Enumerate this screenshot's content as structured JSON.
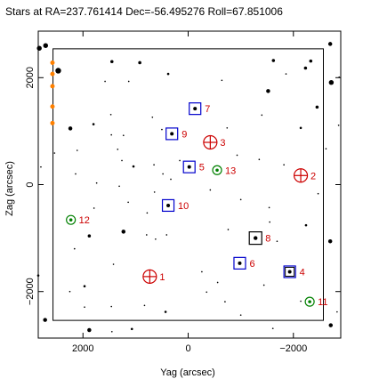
{
  "chart_data": {
    "type": "scatter",
    "title": "Stars at RA=237.761414 Dec=-56.495276 Roll=67.851006",
    "xlabel": "Yag (arcsec)",
    "ylabel": "Zag (arcsec)",
    "xlim": [
      2850,
      -2900
    ],
    "ylim": [
      -2870,
      2870
    ],
    "xticks": [
      2000,
      0,
      -2000
    ],
    "yticks": [
      2000,
      0,
      -2000
    ],
    "xticklabels": [
      "2000",
      "0",
      "−2000"
    ],
    "yticklabels": [
      "2000",
      "0",
      "−2000"
    ],
    "grid": false,
    "colors": {
      "stars": "#000000",
      "guide": "#0000cc",
      "acq": "#000000",
      "mon": "#008000",
      "fid": "#cc0000",
      "bad": "#ff8000"
    },
    "ccd_boundary": {
      "yag": [
        2570,
        -2570
      ],
      "zag": [
        -2540,
        2540
      ]
    },
    "catalog": [
      {
        "id": "1",
        "type": "fid",
        "yag": 730,
        "zag": -1720
      },
      {
        "id": "2",
        "type": "fid",
        "yag": -2140,
        "zag": 170
      },
      {
        "id": "3",
        "type": "fid",
        "yag": -420,
        "zag": 790
      },
      {
        "id": "4",
        "type": "guide",
        "yag": -1930,
        "zag": -1630
      },
      {
        "id": "5",
        "type": "guide",
        "yag": -20,
        "zag": 330
      },
      {
        "id": "6",
        "type": "guide",
        "yag": -980,
        "zag": -1470
      },
      {
        "id": "7",
        "type": "guide",
        "yag": -130,
        "zag": 1420
      },
      {
        "id": "8",
        "type": "acq",
        "yag": -1280,
        "zag": -1000
      },
      {
        "id": "9",
        "type": "guide",
        "yag": 310,
        "zag": 950
      },
      {
        "id": "10",
        "type": "guide",
        "yag": 380,
        "zag": -390
      },
      {
        "id": "11",
        "type": "mon",
        "yag": -2310,
        "zag": -2190
      },
      {
        "id": "12",
        "type": "mon",
        "yag": 2230,
        "zag": -660
      },
      {
        "id": "13",
        "type": "mon",
        "yag": -550,
        "zag": 270
      }
    ],
    "bad_stars": [
      {
        "yag": 2580,
        "zag": 2280
      },
      {
        "yag": 2580,
        "zag": 2070
      },
      {
        "yag": 2580,
        "zag": 1840
      },
      {
        "yag": 2580,
        "zag": 1460
      },
      {
        "yag": 2580,
        "zag": 1150
      }
    ],
    "field_stars": [
      {
        "yag": 2470,
        "zag": 2130,
        "mag": 8.5
      },
      {
        "yag": -2720,
        "zag": 1910,
        "mag": 9
      },
      {
        "yag": 1450,
        "zag": 2300,
        "mag": 10
      },
      {
        "yag": 920,
        "zag": 2280,
        "mag": 10
      },
      {
        "yag": -2330,
        "zag": 2310,
        "mag": 10
      },
      {
        "yag": -1620,
        "zag": 2320,
        "mag": 10
      },
      {
        "yag": -2230,
        "zag": 2180,
        "mag": 10
      },
      {
        "yag": 380,
        "zag": 2070,
        "mag": 10.5
      },
      {
        "yag": 1580,
        "zag": 1930,
        "mag": 11
      },
      {
        "yag": -1520,
        "zag": 1750,
        "mag": 9.5
      },
      {
        "yag": -2450,
        "zag": 1450,
        "mag": 10
      },
      {
        "yag": 1470,
        "zag": 1310,
        "mag": 11
      },
      {
        "yag": 1800,
        "zag": 1130,
        "mag": 10.5
      },
      {
        "yag": 2240,
        "zag": 1050,
        "mag": 9.5
      },
      {
        "yag": 1230,
        "zag": 920,
        "mag": 11
      },
      {
        "yag": 1460,
        "zag": 930,
        "mag": 11
      },
      {
        "yag": 500,
        "zag": 1030,
        "mag": 11
      },
      {
        "yag": 680,
        "zag": 1260,
        "mag": 11
      },
      {
        "yag": -1400,
        "zag": 1300,
        "mag": 11
      },
      {
        "yag": -740,
        "zag": 1060,
        "mag": 11
      },
      {
        "yag": -2140,
        "zag": 1060,
        "mag": 10.5
      },
      {
        "yag": -2620,
        "zag": 670,
        "mag": 11
      },
      {
        "yag": 2110,
        "zag": 640,
        "mag": 11
      },
      {
        "yag": 1340,
        "zag": 660,
        "mag": 11
      },
      {
        "yag": 1260,
        "zag": 450,
        "mag": 11
      },
      {
        "yag": 1040,
        "zag": 340,
        "mag": 10.5
      },
      {
        "yag": 650,
        "zag": 370,
        "mag": 11
      },
      {
        "yag": 480,
        "zag": 200,
        "mag": 11
      },
      {
        "yag": 160,
        "zag": 450,
        "mag": 11
      },
      {
        "yag": -930,
        "zag": 550,
        "mag": 11
      },
      {
        "yag": -1350,
        "zag": 470,
        "mag": 11
      },
      {
        "yag": -1820,
        "zag": 370,
        "mag": 11
      },
      {
        "yag": 2140,
        "zag": 200,
        "mag": 11
      },
      {
        "yag": 1740,
        "zag": 30,
        "mag": 11
      },
      {
        "yag": 1310,
        "zag": -30,
        "mag": 11
      },
      {
        "yag": 640,
        "zag": -140,
        "mag": 11
      },
      {
        "yag": 330,
        "zag": 100,
        "mag": 11
      },
      {
        "yag": -420,
        "zag": -100,
        "mag": 11
      },
      {
        "yag": -1000,
        "zag": -280,
        "mag": 11
      },
      {
        "yag": -1540,
        "zag": -430,
        "mag": 11
      },
      {
        "yag": -2470,
        "zag": -170,
        "mag": 11
      },
      {
        "yag": 1790,
        "zag": -440,
        "mag": 11
      },
      {
        "yag": 1140,
        "zag": -330,
        "mag": 11
      },
      {
        "yag": 780,
        "zag": -530,
        "mag": 11
      },
      {
        "yag": 1230,
        "zag": -880,
        "mag": 9.5
      },
      {
        "yag": 790,
        "zag": -940,
        "mag": 11
      },
      {
        "yag": 1880,
        "zag": -960,
        "mag": 10
      },
      {
        "yag": 410,
        "zag": -940,
        "mag": 11
      },
      {
        "yag": 620,
        "zag": -1020,
        "mag": 11
      },
      {
        "yag": -760,
        "zag": -840,
        "mag": 11
      },
      {
        "yag": -1550,
        "zag": -700,
        "mag": 11
      },
      {
        "yag": -2240,
        "zag": -760,
        "mag": 10.5
      },
      {
        "yag": -1690,
        "zag": -1060,
        "mag": 11
      },
      {
        "yag": 2160,
        "zag": -1200,
        "mag": 11
      },
      {
        "yag": 1420,
        "zag": -1490,
        "mag": 11
      },
      {
        "yag": 1970,
        "zag": -1900,
        "mag": 10.5
      },
      {
        "yag": 2250,
        "zag": -2000,
        "mag": 11
      },
      {
        "yag": -260,
        "zag": -1630,
        "mag": 11
      },
      {
        "yag": -560,
        "zag": -1830,
        "mag": 11
      },
      {
        "yag": -350,
        "zag": -2010,
        "mag": 11
      },
      {
        "yag": -700,
        "zag": -2190,
        "mag": 11
      },
      {
        "yag": -1440,
        "zag": -1880,
        "mag": 11
      },
      {
        "yag": -2140,
        "zag": -2180,
        "mag": 11
      },
      {
        "yag": 1970,
        "zag": -2290,
        "mag": 11
      },
      {
        "yag": 1460,
        "zag": -2280,
        "mag": 11
      },
      {
        "yag": 830,
        "zag": -2260,
        "mag": 11
      },
      {
        "yag": 430,
        "zag": -2380,
        "mag": 10.5
      },
      {
        "yag": -1000,
        "zag": -2440,
        "mag": 11
      },
      {
        "yag": 2540,
        "zag": 590,
        "mag": 11
      },
      {
        "yag": 1130,
        "zag": 1930,
        "mag": 11
      },
      {
        "yag": -640,
        "zag": 1950,
        "mag": 11
      },
      {
        "yag": -1860,
        "zag": 2070,
        "mag": 11
      },
      {
        "yag": -2700,
        "zag": -1060,
        "mag": 9.5
      },
      {
        "yag": -2710,
        "zag": -2630,
        "mag": 9.5
      },
      {
        "yag": -2700,
        "zag": 2630,
        "mag": 9.5
      },
      {
        "yag": 2710,
        "zag": 2600,
        "mag": 9
      },
      {
        "yag": 2720,
        "zag": -2530,
        "mag": 9.5
      },
      {
        "yag": 1880,
        "zag": -2720,
        "mag": 9.5
      },
      {
        "yag": -1610,
        "zag": -2690,
        "mag": 11
      },
      {
        "yag": 1450,
        "zag": -2750,
        "mag": 11
      },
      {
        "yag": 1070,
        "zag": -2700,
        "mag": 10.5
      },
      {
        "yag": 2830,
        "zag": 2550,
        "mag": 9
      },
      {
        "yag": -2830,
        "zag": -2380,
        "mag": 11
      },
      {
        "yag": -2860,
        "zag": 1110,
        "mag": 11
      },
      {
        "yag": -2870,
        "zag": 2010,
        "mag": 11
      },
      {
        "yag": 2850,
        "zag": -1700,
        "mag": 10.5
      },
      {
        "yag": 2800,
        "zag": 330,
        "mag": 11
      }
    ]
  }
}
